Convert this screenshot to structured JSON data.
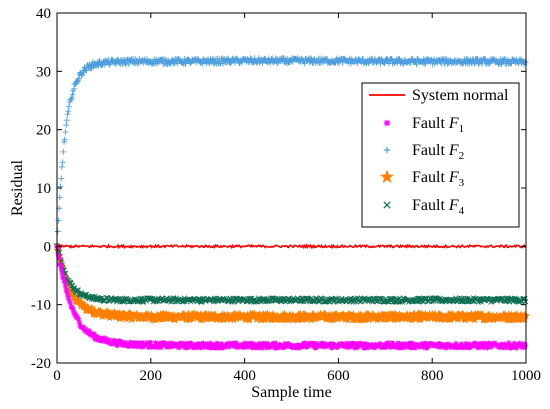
{
  "chart_data": {
    "type": "line",
    "xlabel": "Sample time",
    "ylabel": "Residual",
    "xlim": [
      0,
      1000
    ],
    "ylim": [
      -20,
      40
    ],
    "x_ticks": [
      0,
      200,
      400,
      600,
      800,
      1000
    ],
    "y_ticks": [
      -20,
      -10,
      0,
      10,
      20,
      30,
      40
    ],
    "grid": false,
    "legend_position": "top-right",
    "series": [
      {
        "name": "System normal",
        "legend_main": "System normal",
        "legend_sub": "",
        "color": "#ff0000",
        "style": "line",
        "marker": "none",
        "x": [
          0,
          100,
          200,
          300,
          400,
          500,
          600,
          700,
          800,
          900,
          1000
        ],
        "y": [
          0,
          0,
          0,
          0,
          0,
          0,
          0,
          0,
          0,
          0,
          0
        ]
      },
      {
        "name": "Fault F1",
        "legend_main": "Fault F",
        "legend_sub": "1",
        "color": "#ff00ff",
        "style": "markers",
        "marker": "asterisk",
        "x": [
          0,
          10,
          20,
          30,
          40,
          50,
          60,
          80,
          100,
          130,
          160,
          200,
          250,
          300,
          400,
          500,
          600,
          700,
          800,
          900,
          1000
        ],
        "y": [
          0,
          -4.5,
          -7.8,
          -10.2,
          -12,
          -13.3,
          -14.3,
          -15.5,
          -16.1,
          -16.6,
          -16.8,
          -16.9,
          -17,
          -17,
          -17,
          -17,
          -17,
          -17,
          -17,
          -17,
          -17
        ]
      },
      {
        "name": "Fault F2",
        "legend_main": "Fault F",
        "legend_sub": "2",
        "color": "#4f9fdf",
        "style": "markers",
        "marker": "plus",
        "x": [
          0,
          5,
          10,
          15,
          20,
          25,
          30,
          40,
          50,
          60,
          70,
          80,
          100,
          130,
          160,
          200,
          300,
          400,
          500,
          600,
          700,
          800,
          900,
          1000
        ],
        "y": [
          0,
          7,
          13,
          17.5,
          21,
          23.5,
          25.5,
          28,
          29.5,
          30.4,
          30.9,
          31.2,
          31.5,
          31.6,
          31.7,
          31.7,
          31.7,
          31.8,
          31.8,
          31.8,
          31.7,
          31.7,
          31.7,
          31.6
        ]
      },
      {
        "name": "Fault F3",
        "legend_main": "Fault F",
        "legend_sub": "3",
        "color": "#ff8000",
        "style": "markers",
        "marker": "star",
        "x": [
          0,
          10,
          20,
          30,
          40,
          50,
          60,
          80,
          100,
          130,
          160,
          200,
          300,
          400,
          500,
          600,
          700,
          800,
          900,
          1000
        ],
        "y": [
          0,
          -3.5,
          -6,
          -7.8,
          -9,
          -9.9,
          -10.5,
          -11.2,
          -11.6,
          -11.9,
          -12,
          -12.1,
          -12.1,
          -12.1,
          -12.1,
          -12.1,
          -12.1,
          -12.1,
          -12.1,
          -12.1
        ]
      },
      {
        "name": "Fault F4",
        "legend_main": "Fault F",
        "legend_sub": "4",
        "color": "#0f6e52",
        "style": "markers",
        "marker": "cross",
        "x": [
          0,
          10,
          20,
          30,
          40,
          50,
          60,
          80,
          100,
          130,
          160,
          200,
          300,
          400,
          500,
          600,
          700,
          800,
          900,
          1000
        ],
        "y": [
          0,
          -3,
          -5.2,
          -6.6,
          -7.5,
          -8.1,
          -8.5,
          -8.9,
          -9.1,
          -9.2,
          -9.2,
          -9.2,
          -9.2,
          -9.2,
          -9.2,
          -9.2,
          -9.2,
          -9.2,
          -9.2,
          -9.2
        ]
      }
    ]
  }
}
